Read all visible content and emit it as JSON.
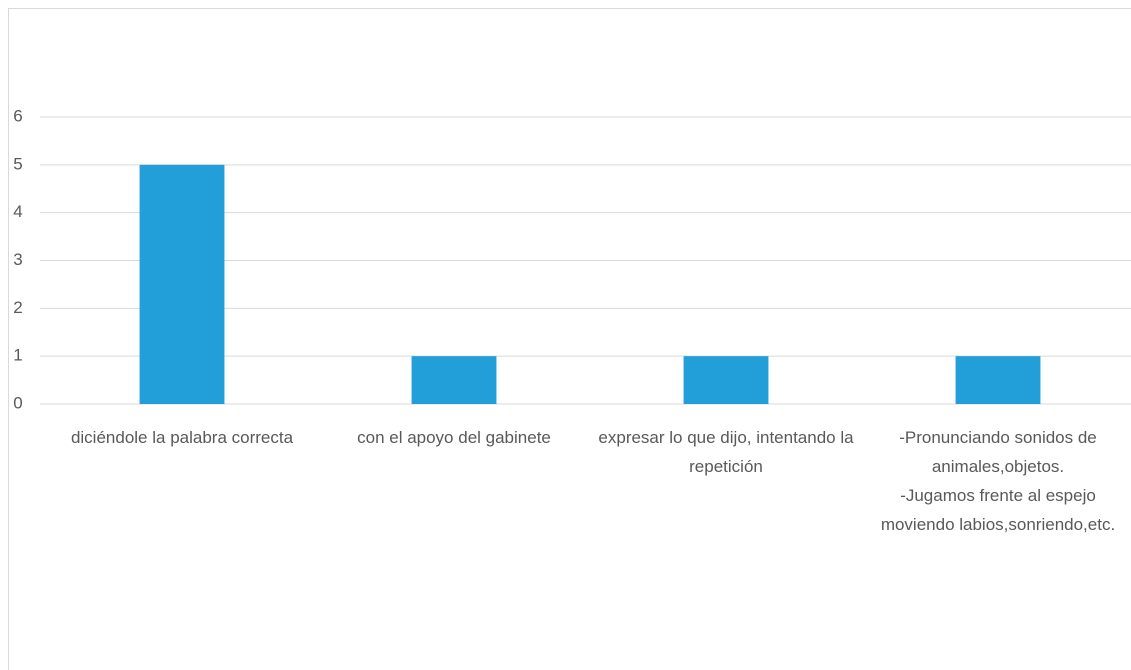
{
  "chart_data": {
    "type": "bar",
    "categories": [
      "diciéndole la palabra correcta",
      "con el apoyo del gabinete",
      "expresar lo que dijo, intentando la repetición",
      "-Pronunciando sonidos de animales,objetos.\n-Jugamos frente al espejo moviendo labios,sonriendo,etc."
    ],
    "values": [
      5,
      1,
      1,
      1
    ],
    "color": "#229ed9",
    "ylim": [
      0,
      6
    ],
    "yticks": [
      0,
      1,
      2,
      3,
      4,
      5,
      6
    ],
    "grid": true
  }
}
